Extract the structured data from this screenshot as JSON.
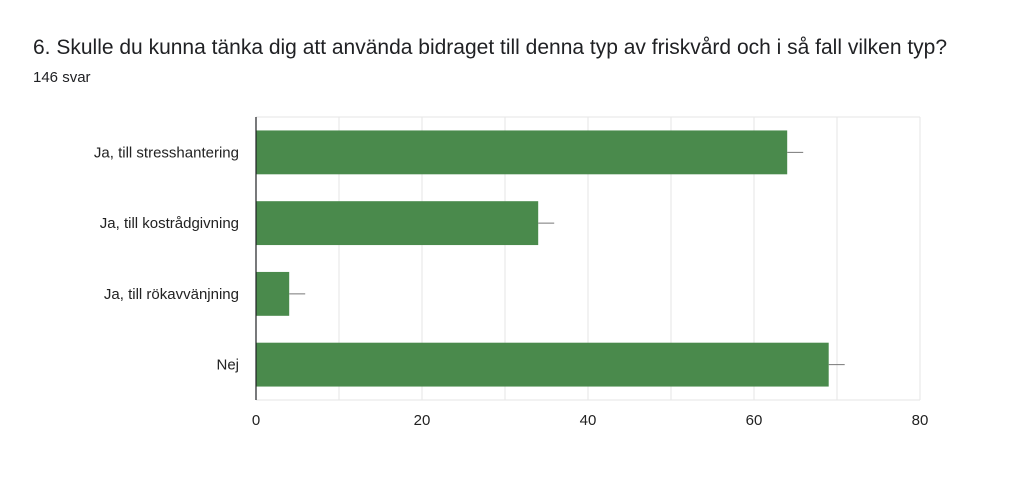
{
  "question": {
    "title": "6. Skulle du kunna tänka dig att använda bidraget till denna typ av friskvård och i så fall vilken typ?",
    "response_count": "146 svar"
  },
  "colors": {
    "bar": "#4a8a4c",
    "grid": "#e6e6e6",
    "axis": "#202124",
    "errorbar": "#777777"
  },
  "chart_data": {
    "type": "bar",
    "orientation": "horizontal",
    "categories": [
      "Ja, till stresshantering",
      "Ja, till kostrådgivning",
      "Ja, till rökavvänjning",
      "Nej"
    ],
    "values": [
      64,
      34,
      4,
      69
    ],
    "xlim": [
      0,
      80
    ],
    "xticks": [
      0,
      20,
      40,
      60,
      80
    ],
    "grid": true,
    "title": "",
    "xlabel": "",
    "ylabel": ""
  }
}
